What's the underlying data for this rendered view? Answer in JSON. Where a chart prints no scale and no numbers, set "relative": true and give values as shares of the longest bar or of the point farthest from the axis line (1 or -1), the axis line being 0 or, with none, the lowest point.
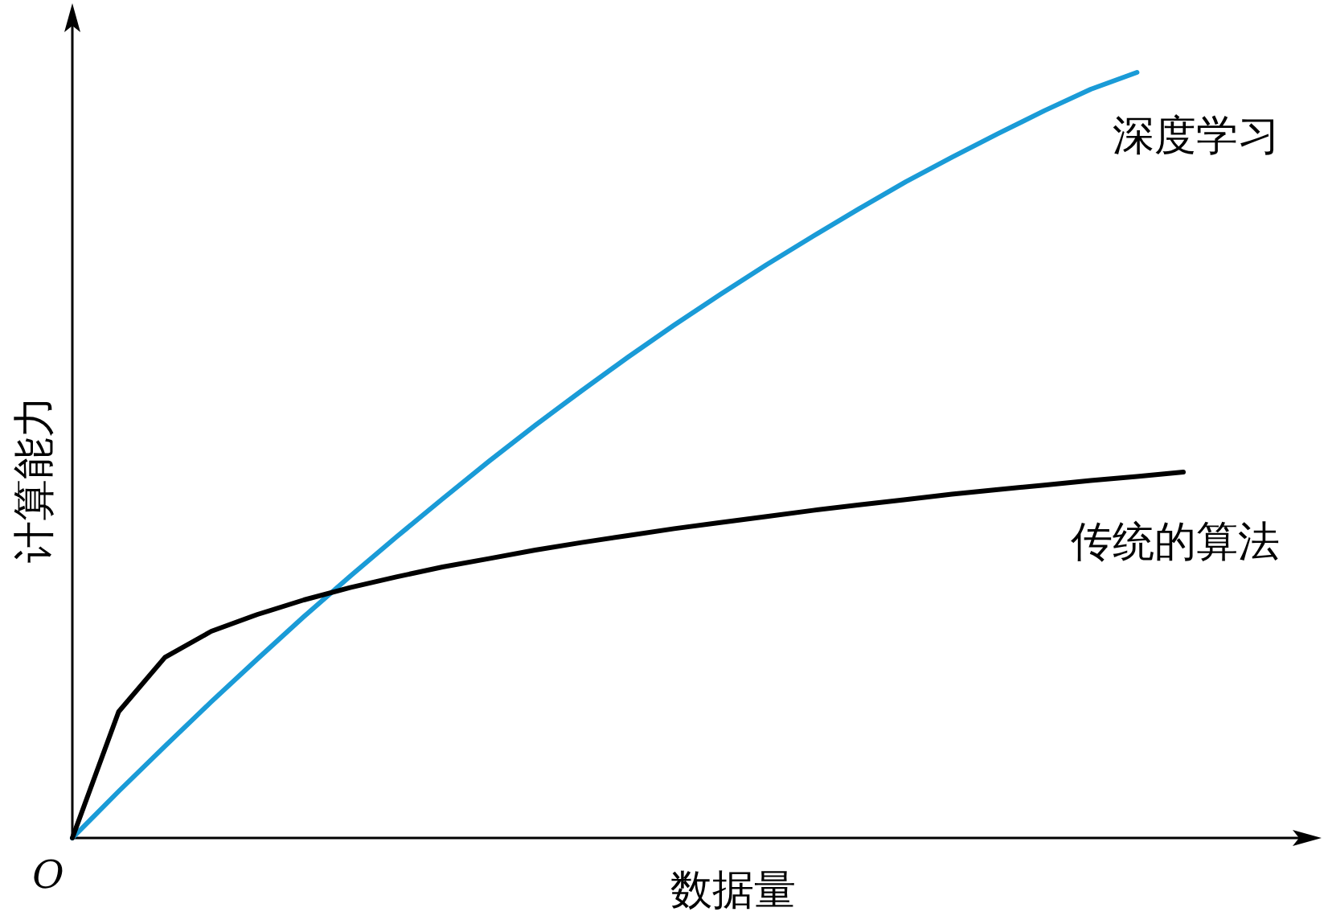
{
  "chart_data": {
    "type": "line",
    "relative": true,
    "xlabel": "数据量",
    "ylabel": "计算能力",
    "annotations": [
      "O"
    ],
    "categories": [
      null,
      null,
      null,
      null,
      null,
      null,
      null,
      null,
      null,
      null,
      null,
      null,
      null,
      null,
      null,
      null,
      null,
      null,
      null,
      null,
      null,
      null,
      null,
      null,
      null
    ],
    "series": [
      {
        "name": "深度学习",
        "color": "#1a9bd7",
        "values": [
          0,
          0.061,
          0.12,
          0.178,
          0.234,
          0.289,
          0.342,
          0.393,
          0.443,
          0.492,
          0.539,
          0.584,
          0.628,
          0.67,
          0.71,
          0.749,
          0.786,
          0.822,
          0.857,
          0.889,
          0.92,
          0.95,
          0.978,
          1,
          null
        ]
      },
      {
        "name": "传统的算法",
        "color": "#000000",
        "values": [
          0,
          0.165,
          0.236,
          0.27,
          0.292,
          0.311,
          0.327,
          0.341,
          0.354,
          0.365,
          0.376,
          0.386,
          0.395,
          0.404,
          0.412,
          0.42,
          0.428,
          0.435,
          0.442,
          0.449,
          0.455,
          0.461,
          0.467,
          0.472,
          0.478
        ]
      }
    ],
    "legend": false,
    "grid": false
  }
}
